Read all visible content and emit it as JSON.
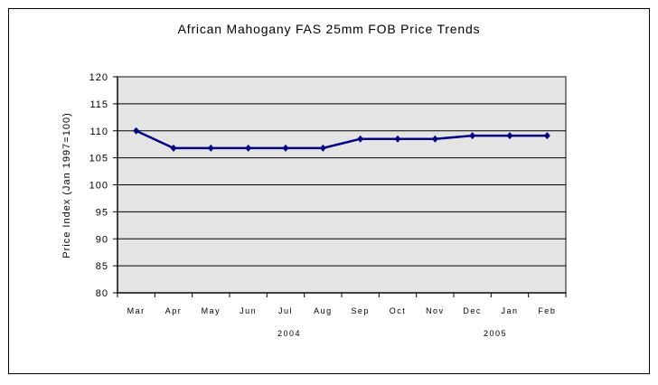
{
  "chart_data": {
    "type": "line",
    "title": "African Mahogany FAS 25mm FOB Price Trends",
    "xlabel": "",
    "ylabel": "Price Index (Jan 1997=100)",
    "categories": [
      "Mar",
      "Apr",
      "May",
      "Jun",
      "Jul",
      "Aug",
      "Sep",
      "Oct",
      "Nov",
      "Dec",
      "Jan",
      "Feb"
    ],
    "year_labels": [
      "2004",
      "2005"
    ],
    "series": [
      {
        "name": "Price Index",
        "values": [
          110,
          106.8,
          106.8,
          106.8,
          106.8,
          106.8,
          108.5,
          108.5,
          108.5,
          109.1,
          109.1,
          109.1
        ]
      }
    ],
    "ylim": [
      80,
      120
    ],
    "yticks": [
      80,
      85,
      90,
      95,
      100,
      105,
      110,
      115,
      120
    ],
    "grid": true,
    "legend": "none",
    "colors": {
      "line": "#000080",
      "plot_bg": "#e4e4e4"
    }
  }
}
